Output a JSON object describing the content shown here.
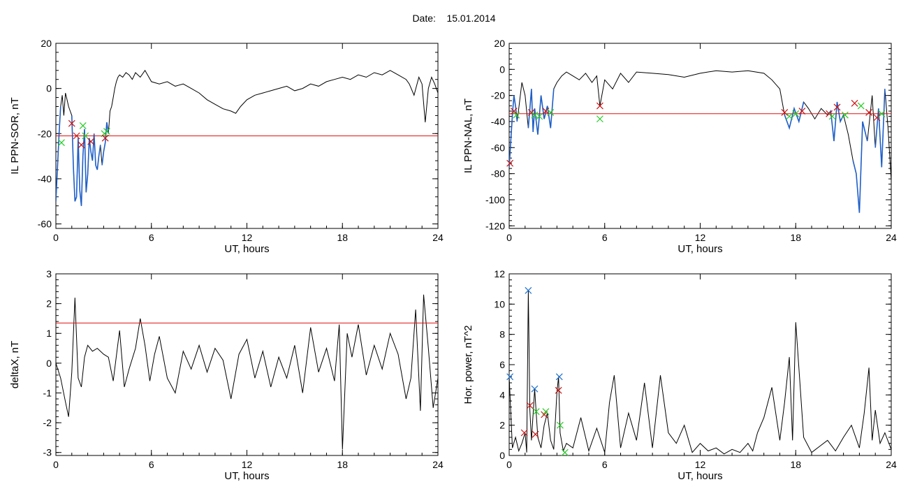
{
  "header": {
    "date_label": "Date:",
    "date_value": "15.01.2014"
  },
  "colors": {
    "trace": "#000000",
    "segment": "#1f5fc8",
    "threshold": "#e01010",
    "mark_red": "#cc1111",
    "mark_green": "#22cc22",
    "mark_blue": "#1a6fd0"
  },
  "chart_data": [
    {
      "id": "sor",
      "type": "line",
      "title": "",
      "xlabel": "UT, hours",
      "ylabel": "IL PPN-SOR, nT",
      "xlim": [
        0,
        24
      ],
      "ylim": [
        -62,
        20
      ],
      "xticks": [
        0,
        6,
        12,
        18,
        24
      ],
      "yticks": [
        -60,
        -40,
        -20,
        0,
        20
      ],
      "threshold": -21,
      "series": [
        {
          "x": [
            0,
            0.1,
            0.2,
            0.3,
            0.4,
            0.5,
            0.6,
            0.7,
            0.8,
            0.9,
            1.0,
            1.1,
            1.2,
            1.3,
            1.4,
            1.5,
            1.6,
            1.7,
            1.8,
            1.9,
            2.0,
            2.1,
            2.2,
            2.3,
            2.4,
            2.5,
            2.6,
            2.7,
            2.8,
            2.9,
            3.0,
            3.1,
            3.2,
            3.3,
            3.4,
            3.5,
            3.6,
            3.7,
            3.8,
            3.9,
            4.0,
            4.2,
            4.4,
            4.6,
            4.8,
            5.0,
            5.3,
            5.6,
            6.0,
            6.5,
            7.0,
            7.5,
            8.0,
            8.5,
            9.0,
            9.5,
            10.0,
            10.5,
            11.0,
            11.3,
            11.6,
            12.0,
            12.5,
            13.0,
            13.5,
            14.0,
            14.5,
            15.0,
            15.5,
            16.0,
            16.5,
            17.0,
            17.5,
            18.0,
            18.5,
            19.0,
            19.5,
            20.0,
            20.5,
            21.0,
            21.5,
            22.0,
            22.2,
            22.5,
            22.8,
            23.0,
            23.2,
            23.4,
            23.6,
            23.8,
            24.0
          ],
          "y": [
            -50,
            -35,
            -20,
            -8,
            -3,
            -12,
            -2,
            -5,
            -8,
            -10,
            -12,
            -35,
            -50,
            -48,
            -22,
            -45,
            -52,
            -30,
            -18,
            -46,
            -38,
            -22,
            -28,
            -32,
            -20,
            -34,
            -36,
            -30,
            -25,
            -34,
            -28,
            -24,
            -15,
            -20,
            -10,
            -8,
            -4,
            0,
            3,
            5,
            6,
            5,
            7,
            6,
            4,
            7,
            5,
            8,
            3,
            2,
            3,
            1,
            2,
            0,
            -2,
            -5,
            -7,
            -9,
            -10,
            -11,
            -8,
            -5,
            -3,
            -2,
            -1,
            0,
            1,
            -1,
            0,
            2,
            1,
            3,
            4,
            5,
            4,
            6,
            5,
            7,
            6,
            8,
            6,
            4,
            2,
            -3,
            5,
            2,
            -15,
            0,
            5,
            2,
            -2
          ],
          "blue_segments": [
            [
              0,
              0.3
            ],
            [
              1.0,
              2.8
            ],
            [
              2.9,
              3.3
            ]
          ]
        }
      ],
      "markers": [
        {
          "x": 1.0,
          "y": -15.5,
          "c": "red"
        },
        {
          "x": 1.3,
          "y": -21,
          "c": "red"
        },
        {
          "x": 1.6,
          "y": -25,
          "c": "red"
        },
        {
          "x": 1.7,
          "y": -16.5,
          "c": "green"
        },
        {
          "x": 1.85,
          "y": -21,
          "c": "green"
        },
        {
          "x": 2.2,
          "y": -23.5,
          "c": "red"
        },
        {
          "x": 0.35,
          "y": -24,
          "c": "green"
        },
        {
          "x": 3.05,
          "y": -20,
          "c": "green"
        },
        {
          "x": 3.2,
          "y": -19,
          "c": "green"
        },
        {
          "x": 3.1,
          "y": -22,
          "c": "red"
        }
      ]
    },
    {
      "id": "nal",
      "type": "line",
      "title": "",
      "xlabel": "UT, hours",
      "ylabel": "IL PPN-NAL, nT",
      "xlim": [
        0,
        24
      ],
      "ylim": [
        -122,
        20
      ],
      "xticks": [
        0,
        6,
        12,
        18,
        24
      ],
      "yticks": [
        -120,
        -100,
        -80,
        -60,
        -40,
        -20,
        0,
        20
      ],
      "threshold": -34,
      "series": [
        {
          "x": [
            0,
            0.1,
            0.2,
            0.3,
            0.4,
            0.5,
            0.6,
            0.8,
            1.0,
            1.2,
            1.4,
            1.5,
            1.6,
            1.8,
            2.0,
            2.2,
            2.4,
            2.6,
            2.8,
            3.0,
            3.3,
            3.6,
            4.0,
            4.4,
            4.8,
            5.2,
            5.5,
            5.7,
            6.0,
            6.5,
            7.0,
            7.5,
            8.0,
            9.0,
            10.0,
            11.0,
            12.0,
            13.0,
            14.0,
            15.0,
            16.0,
            16.5,
            17.0,
            17.3,
            17.6,
            17.9,
            18.2,
            18.5,
            18.8,
            19.2,
            19.6,
            20.0,
            20.2,
            20.4,
            20.6,
            20.8,
            21.0,
            21.3,
            21.6,
            21.8,
            22.0,
            22.2,
            22.5,
            22.8,
            23.0,
            23.2,
            23.4,
            23.6,
            23.8,
            24.0
          ],
          "y": [
            -75,
            -55,
            -35,
            -20,
            -28,
            -40,
            -30,
            -10,
            -20,
            -45,
            -15,
            -48,
            -30,
            -50,
            -20,
            -38,
            -28,
            -45,
            -15,
            -10,
            -5,
            -2,
            -5,
            -8,
            -3,
            -10,
            -5,
            -28,
            -8,
            -15,
            -3,
            -10,
            -2,
            -3,
            -4,
            -6,
            -3,
            -1,
            -2,
            -1,
            -3,
            -8,
            -15,
            -35,
            -45,
            -30,
            -40,
            -25,
            -30,
            -38,
            -30,
            -35,
            -32,
            -55,
            -25,
            -40,
            -35,
            -50,
            -70,
            -80,
            -110,
            -40,
            -55,
            -20,
            -60,
            -30,
            -75,
            -15,
            -45,
            -85
          ],
          "blue_segments": [
            [
              0,
              0.5
            ],
            [
              1.2,
              2.9
            ],
            [
              5.6,
              5.8
            ],
            [
              17.2,
              18.6
            ],
            [
              20.0,
              21.1
            ],
            [
              21.6,
              22.6
            ],
            [
              22.9,
              23.7
            ]
          ]
        }
      ],
      "markers": [
        {
          "x": 0.05,
          "y": -72,
          "c": "red"
        },
        {
          "x": 0.3,
          "y": -32,
          "c": "red"
        },
        {
          "x": 0.45,
          "y": -35,
          "c": "green"
        },
        {
          "x": 1.4,
          "y": -33,
          "c": "red"
        },
        {
          "x": 1.6,
          "y": -35,
          "c": "green"
        },
        {
          "x": 1.9,
          "y": -36,
          "c": "green"
        },
        {
          "x": 2.3,
          "y": -32,
          "c": "red"
        },
        {
          "x": 2.6,
          "y": -33,
          "c": "green"
        },
        {
          "x": 5.7,
          "y": -28,
          "c": "red"
        },
        {
          "x": 5.7,
          "y": -38,
          "c": "green"
        },
        {
          "x": 17.3,
          "y": -33,
          "c": "red"
        },
        {
          "x": 17.6,
          "y": -36,
          "c": "green"
        },
        {
          "x": 18.0,
          "y": -34,
          "c": "green"
        },
        {
          "x": 18.4,
          "y": -32,
          "c": "red"
        },
        {
          "x": 20.1,
          "y": -34,
          "c": "red"
        },
        {
          "x": 20.3,
          "y": -36,
          "c": "green"
        },
        {
          "x": 20.6,
          "y": -29,
          "c": "red"
        },
        {
          "x": 21.1,
          "y": -35,
          "c": "green"
        },
        {
          "x": 21.7,
          "y": -26,
          "c": "red"
        },
        {
          "x": 22.1,
          "y": -28,
          "c": "green"
        },
        {
          "x": 22.6,
          "y": -33,
          "c": "red"
        },
        {
          "x": 23.1,
          "y": -37,
          "c": "red"
        },
        {
          "x": 23.4,
          "y": -34,
          "c": "green"
        }
      ]
    },
    {
      "id": "deltax",
      "type": "line",
      "title": "",
      "xlabel": "UT, hours",
      "ylabel": "deltaX, nT",
      "xlim": [
        0,
        24
      ],
      "ylim": [
        -3.1,
        3.0
      ],
      "xticks": [
        0,
        6,
        12,
        18,
        24
      ],
      "yticks": [
        -3,
        -2,
        -1,
        0,
        1,
        2,
        3
      ],
      "threshold": 1.35,
      "series": [
        {
          "x": [
            0,
            0.3,
            0.6,
            0.8,
            1.0,
            1.2,
            1.4,
            1.6,
            1.8,
            2.0,
            2.3,
            2.6,
            3.0,
            3.3,
            3.6,
            4.0,
            4.3,
            4.6,
            5.0,
            5.3,
            5.6,
            5.9,
            6.2,
            6.5,
            7.0,
            7.5,
            8.0,
            8.5,
            9.0,
            9.5,
            10.0,
            10.5,
            11.0,
            11.5,
            12.0,
            12.5,
            13.0,
            13.5,
            14.0,
            14.5,
            15.0,
            15.5,
            16.0,
            16.5,
            17.0,
            17.5,
            17.8,
            18.0,
            18.3,
            18.6,
            19.0,
            19.5,
            20.0,
            20.5,
            21.0,
            21.5,
            22.0,
            22.3,
            22.6,
            22.9,
            23.1,
            23.4,
            23.7,
            24.0
          ],
          "y": [
            0,
            -0.5,
            -1.3,
            -1.8,
            -0.3,
            2.2,
            -0.5,
            -0.8,
            0.2,
            0.6,
            0.4,
            0.5,
            0.3,
            0.2,
            -0.6,
            1.1,
            -0.8,
            -0.2,
            0.5,
            1.5,
            0.6,
            -0.6,
            0.3,
            0.9,
            -0.5,
            -1.0,
            0.4,
            -0.2,
            0.6,
            -0.3,
            0.5,
            0.1,
            -1.2,
            0.3,
            0.8,
            -0.5,
            0.4,
            -0.8,
            0.2,
            -0.5,
            0.6,
            -1.0,
            1.2,
            -0.3,
            0.5,
            -0.6,
            1.3,
            -2.9,
            1.0,
            0.2,
            1.3,
            -0.4,
            0.6,
            -0.2,
            1.0,
            0.3,
            -1.2,
            -0.5,
            1.8,
            -1.6,
            2.3,
            0.5,
            -1.5,
            -0.5
          ],
          "blue_segments": []
        }
      ],
      "markers": []
    },
    {
      "id": "power",
      "type": "line",
      "title": "",
      "xlabel": "UT, hours",
      "ylabel": "Hor. power, nT^2",
      "xlim": [
        0,
        24
      ],
      "ylim": [
        0,
        12
      ],
      "xticks": [
        0,
        6,
        12,
        18,
        24
      ],
      "yticks": [
        0,
        2,
        4,
        6,
        8,
        10,
        12
      ],
      "threshold": null,
      "series": [
        {
          "x": [
            0,
            0.2,
            0.4,
            0.6,
            0.8,
            1.0,
            1.1,
            1.2,
            1.3,
            1.4,
            1.6,
            1.7,
            1.8,
            2.0,
            2.2,
            2.4,
            2.6,
            2.8,
            3.0,
            3.1,
            3.2,
            3.4,
            3.6,
            4.0,
            4.5,
            5.0,
            5.5,
            6.0,
            6.3,
            6.6,
            7.0,
            7.5,
            8.0,
            8.5,
            9.0,
            9.5,
            10.0,
            10.5,
            11.0,
            11.5,
            12.0,
            12.5,
            13.0,
            13.5,
            14.0,
            14.5,
            15.0,
            15.3,
            15.6,
            16.0,
            16.5,
            17.0,
            17.3,
            17.6,
            17.8,
            18.0,
            18.5,
            19.0,
            19.5,
            20.0,
            20.5,
            21.0,
            21.5,
            22.0,
            22.3,
            22.6,
            22.8,
            23.0,
            23.3,
            23.6,
            24.0
          ],
          "y": [
            5.2,
            0.5,
            1.2,
            0.3,
            0.8,
            1.5,
            0.2,
            10.9,
            3.0,
            1.0,
            4.4,
            2.8,
            1.2,
            0.5,
            2.0,
            2.8,
            1.0,
            0.4,
            4.2,
            5.2,
            1.5,
            0.3,
            0.8,
            0.5,
            2.5,
            0.3,
            1.8,
            0.2,
            3.5,
            5.3,
            0.5,
            2.8,
            1.0,
            4.8,
            0.5,
            5.3,
            1.5,
            0.8,
            2.0,
            0.2,
            0.8,
            0.3,
            0.5,
            0.1,
            0.4,
            0.2,
            0.8,
            0.3,
            1.5,
            2.5,
            4.5,
            1.0,
            3.5,
            6.5,
            1.0,
            8.8,
            1.2,
            0.2,
            0.6,
            1.0,
            0.3,
            1.2,
            2.0,
            0.5,
            2.8,
            5.8,
            1.0,
            3.0,
            0.8,
            1.5,
            0.4
          ],
          "blue_segments": []
        }
      ],
      "markers": [
        {
          "x": 0.05,
          "y": 5.2,
          "c": "blue"
        },
        {
          "x": 1.2,
          "y": 10.9,
          "c": "blue"
        },
        {
          "x": 1.6,
          "y": 4.4,
          "c": "blue"
        },
        {
          "x": 3.15,
          "y": 5.2,
          "c": "blue"
        },
        {
          "x": 0.95,
          "y": 1.5,
          "c": "red"
        },
        {
          "x": 1.3,
          "y": 3.3,
          "c": "red"
        },
        {
          "x": 1.65,
          "y": 1.4,
          "c": "red"
        },
        {
          "x": 2.2,
          "y": 2.7,
          "c": "red"
        },
        {
          "x": 3.1,
          "y": 4.3,
          "c": "red"
        },
        {
          "x": 1.7,
          "y": 2.9,
          "c": "green"
        },
        {
          "x": 2.3,
          "y": 2.9,
          "c": "green"
        },
        {
          "x": 3.2,
          "y": 2.0,
          "c": "green"
        },
        {
          "x": 3.5,
          "y": 0.2,
          "c": "green"
        }
      ]
    }
  ]
}
